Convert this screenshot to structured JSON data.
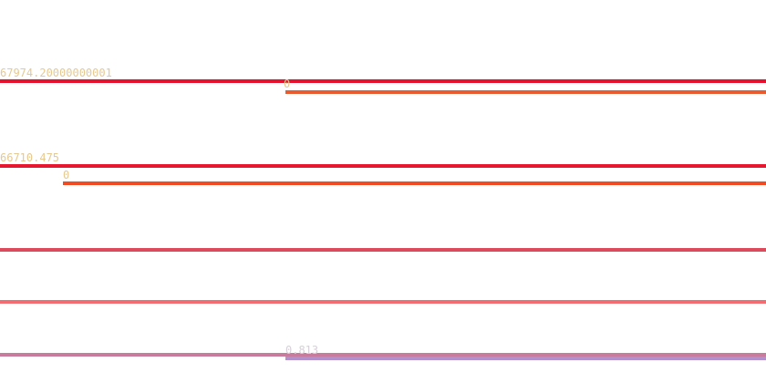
{
  "chart_data": {
    "type": "line",
    "title": "",
    "xlabel": "",
    "ylabel": "",
    "grid": false,
    "legend": "none",
    "series": [
      {
        "color": "#e8112d",
        "start": 0.0,
        "label": "67974.20000000001",
        "label_color": "#e6c98f"
      },
      {
        "color": "#e85a30",
        "start": 0.373,
        "label": "0",
        "label_color": "#e6c98f"
      },
      {
        "color": "#e8162e",
        "start": 0.0,
        "label": "66710.475",
        "label_color": "#e6c98f"
      },
      {
        "color": "#f04b22",
        "start": 0.082,
        "label": "0",
        "label_color": "#e6c98f"
      },
      {
        "color": "#dd4a5b",
        "start": 0.0,
        "label": "",
        "label_color": "#e6c98f"
      },
      {
        "color": "#f26d72",
        "start": 0.0,
        "label": "",
        "label_color": "#e6c98f"
      },
      {
        "color": "#c97b9e",
        "start": 0.0,
        "label": "",
        "label_color": "#e6c98f"
      },
      {
        "color": "#b190cc",
        "start": 0.373,
        "label": "0.813",
        "label_color": "#d7d0d8"
      }
    ]
  }
}
